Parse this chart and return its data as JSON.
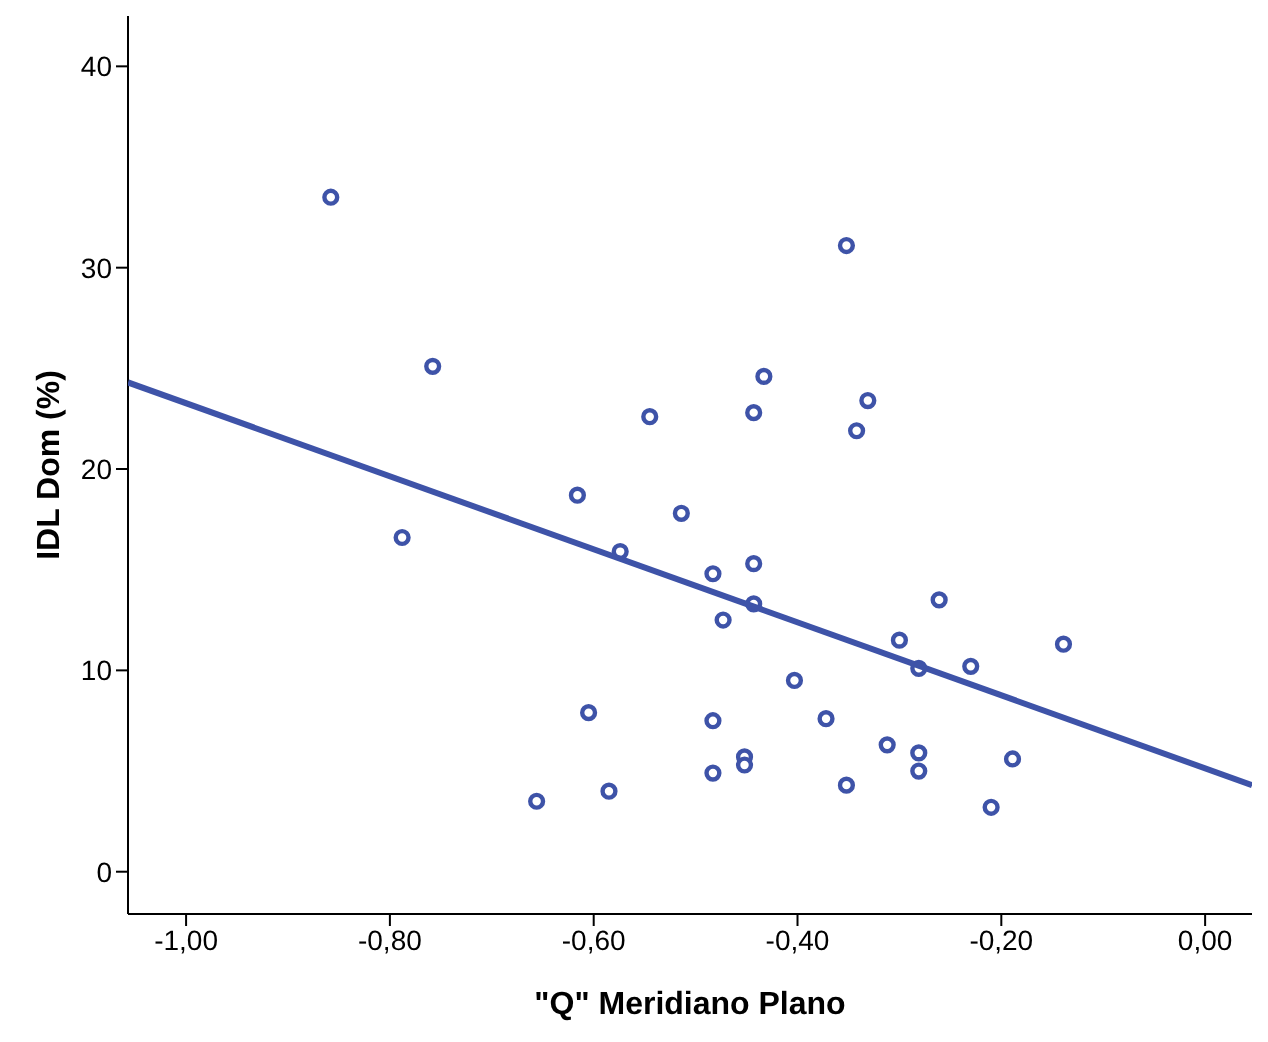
{
  "chart_data": {
    "type": "scatter",
    "xlabel": "\"Q\" Meridiano Plano",
    "ylabel": "IDL Dom (%)",
    "xlim": [
      -1.057,
      0.046
    ],
    "ylim": [
      -2.1,
      42.5
    ],
    "xticks": [
      {
        "value": -1,
        "label": "-1,00"
      },
      {
        "value": -0.8,
        "label": "-0,80"
      },
      {
        "value": -0.6,
        "label": "-0,60"
      },
      {
        "value": -0.4,
        "label": "-0,40"
      },
      {
        "value": -0.2,
        "label": "-0,20"
      },
      {
        "value": 0,
        "label": "0,00"
      }
    ],
    "yticks": [
      0,
      10,
      20,
      30,
      40
    ],
    "series": [
      {
        "color": "#3e53a8",
        "marker": "circle",
        "x": [
          -0.858,
          -0.758,
          -0.545,
          -0.616,
          -0.514,
          -0.788,
          -0.574,
          -0.605,
          -0.656,
          -0.585,
          -0.352,
          -0.433,
          -0.443,
          -0.331,
          -0.342,
          -0.483,
          -0.443,
          -0.443,
          -0.473,
          -0.261,
          -0.3,
          -0.281,
          -0.23,
          -0.139,
          -0.403,
          -0.483,
          -0.372,
          -0.452,
          -0.452,
          -0.483,
          -0.312,
          -0.281,
          -0.281,
          -0.352,
          -0.189,
          -0.21
        ],
        "values": [
          33.5,
          25.1,
          22.6,
          18.7,
          17.8,
          16.6,
          15.9,
          7.9,
          3.5,
          4.0,
          31.1,
          24.6,
          22.8,
          23.4,
          21.9,
          14.8,
          15.3,
          13.3,
          12.5,
          13.5,
          11.5,
          10.1,
          10.2,
          11.3,
          9.5,
          7.5,
          7.6,
          5.7,
          5.3,
          4.9,
          6.3,
          5.9,
          5.0,
          4.3,
          5.6,
          3.2
        ]
      },
      {
        "type": "line",
        "color": "#3e53a8",
        "marker": "none",
        "line_style": "solid",
        "x": [
          -1.057,
          0.046
        ],
        "values": [
          24.3,
          4.3
        ]
      }
    ]
  }
}
